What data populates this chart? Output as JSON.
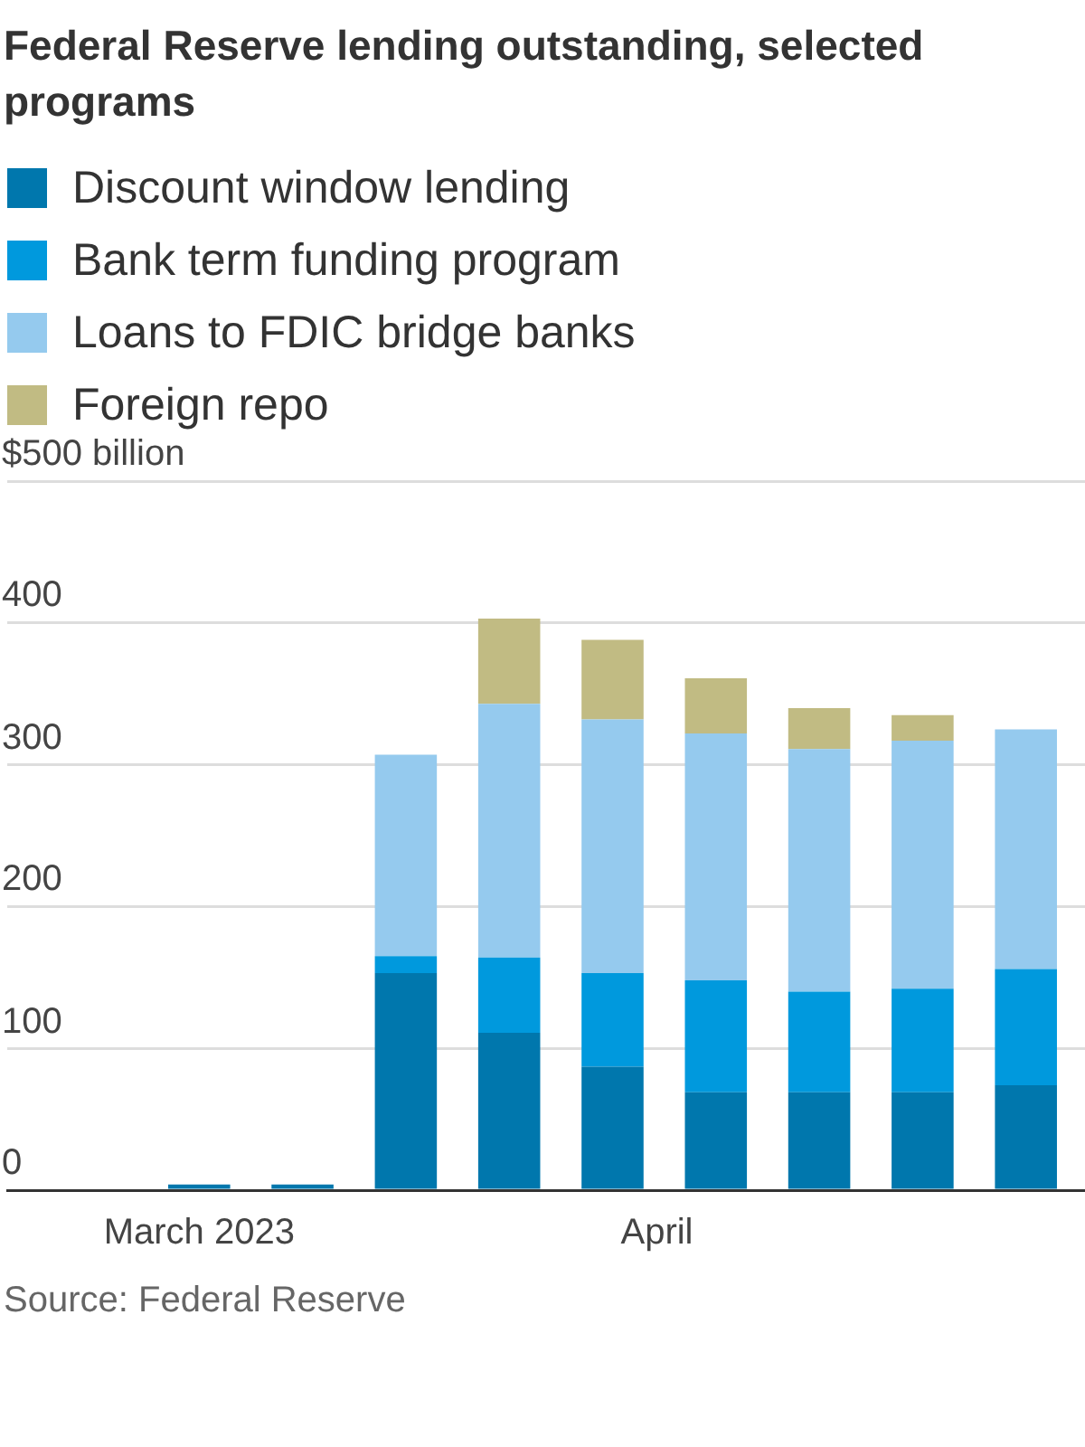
{
  "chart_data": {
    "type": "bar",
    "title": "Federal Reserve lending outstanding, selected programs",
    "x": [
      "2023-03-01",
      "2023-03-08",
      "2023-03-15",
      "2023-03-22",
      "2023-03-29",
      "2023-04-05",
      "2023-04-12",
      "2023-04-19",
      "2023-04-26"
    ],
    "series": [
      {
        "name": "Discount window lending",
        "color": "#0077ad",
        "values": [
          4,
          4,
          153,
          111,
          87,
          69,
          69,
          69,
          74
        ]
      },
      {
        "name": "Bank term funding program",
        "color": "#0099dd",
        "values": [
          0,
          0,
          12,
          53,
          66,
          79,
          71,
          73,
          82
        ]
      },
      {
        "name": "Loans to FDIC bridge banks",
        "color": "#95caee",
        "values": [
          0,
          0,
          142,
          179,
          179,
          174,
          171,
          175,
          169
        ]
      },
      {
        "name": "Foreign repo",
        "color": "#c1bb83",
        "values": [
          0,
          0,
          0,
          60,
          56,
          39,
          29,
          18,
          0
        ]
      }
    ],
    "stacked": true,
    "xlim": [
      "2023-02-16",
      "2023-04-30"
    ],
    "xticks": [
      {
        "value": "2023-03-01",
        "label": "March 2023"
      },
      {
        "value": "2023-04-01",
        "label": "April"
      }
    ],
    "ylim": [
      0,
      500
    ],
    "yticks": [
      0,
      100,
      200,
      300,
      400,
      {
        "value": 500,
        "label": "$500 billion"
      }
    ],
    "grid": "y",
    "legend": "top",
    "annotations": [
      "Source: Federal Reserve"
    ]
  }
}
